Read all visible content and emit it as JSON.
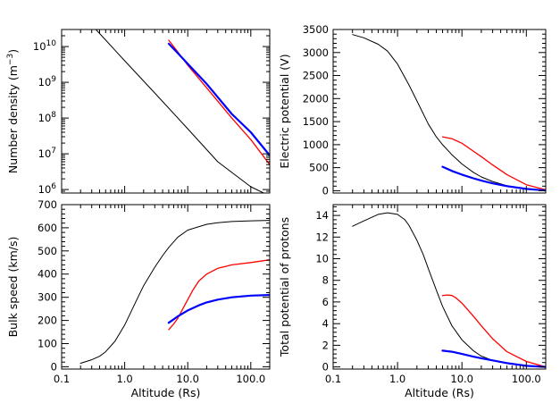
{
  "figure": {
    "background": "#ffffff",
    "axis_color": "#000000",
    "series_colors": {
      "black": "#000000",
      "red": "#ff0000",
      "blue": "#0000ff"
    }
  },
  "chart_data": [
    {
      "id": "number-density",
      "type": "line",
      "xscale": "log",
      "yscale": "log",
      "xlim": [
        0.1,
        200
      ],
      "ylim": [
        800000,
        30000000000
      ],
      "xlabel": "",
      "ylabel": "Number density  (m",
      "ylabel_sup": "−3",
      "ylabel_tail": ")",
      "x_ticks": [],
      "y_ticks": [
        {
          "value": 1000000,
          "base": "10",
          "exp": "6"
        },
        {
          "value": 10000000,
          "base": "10",
          "exp": "7"
        },
        {
          "value": 100000000,
          "base": "10",
          "exp": "8"
        },
        {
          "value": 1000000000,
          "base": "10",
          "exp": "9"
        },
        {
          "value": 10000000000,
          "base": "10",
          "exp": "10"
        }
      ],
      "series": [
        {
          "color": "#000000",
          "width": 1,
          "x": [
            0.35,
            1,
            3,
            10,
            30,
            100,
            160
          ],
          "y": [
            30000000000,
            4000000000,
            500000000,
            50000000,
            6000000,
            1200000,
            800000
          ]
        },
        {
          "color": "#ff0000",
          "width": 1.3,
          "x": [
            5,
            7,
            10,
            20,
            50,
            100,
            200
          ],
          "y": [
            15000000000,
            7000000000,
            3000000000,
            700000000,
            100000000,
            25000000,
            5000000
          ]
        },
        {
          "color": "#0000ff",
          "width": 2.2,
          "x": [
            5,
            7,
            10,
            20,
            50,
            100,
            200
          ],
          "y": [
            12000000000,
            6500000000,
            3300000000,
            900000000,
            130000000,
            40000000,
            9000000
          ]
        }
      ]
    },
    {
      "id": "electric-potential",
      "type": "line",
      "xscale": "log",
      "yscale": "linear",
      "xlim": [
        0.1,
        200
      ],
      "ylim": [
        -50,
        3500
      ],
      "xlabel": "",
      "ylabel": "Electric potential  (V)",
      "x_ticks": [],
      "y_ticks": [
        {
          "value": 0,
          "label": "0"
        },
        {
          "value": 500,
          "label": "500"
        },
        {
          "value": 1000,
          "label": "1000"
        },
        {
          "value": 1500,
          "label": "1500"
        },
        {
          "value": 2000,
          "label": "2000"
        },
        {
          "value": 2500,
          "label": "2500"
        },
        {
          "value": 3000,
          "label": "3000"
        },
        {
          "value": 3500,
          "label": "3500"
        }
      ],
      "series": [
        {
          "color": "#000000",
          "width": 1,
          "x": [
            0.2,
            0.3,
            0.5,
            0.7,
            1,
            1.5,
            2,
            3,
            4,
            5,
            7,
            10,
            15,
            20,
            30,
            50,
            100,
            200
          ],
          "y": [
            3390,
            3320,
            3180,
            3030,
            2750,
            2300,
            1950,
            1450,
            1170,
            1000,
            780,
            580,
            400,
            300,
            200,
            110,
            40,
            5
          ]
        },
        {
          "color": "#ff0000",
          "width": 1.3,
          "x": [
            5,
            7,
            10,
            15,
            20,
            30,
            50,
            100,
            200
          ],
          "y": [
            1170,
            1130,
            1030,
            860,
            740,
            560,
            350,
            130,
            20
          ]
        },
        {
          "color": "#0000ff",
          "width": 2.2,
          "x": [
            5,
            7,
            10,
            15,
            20,
            30,
            50,
            100,
            200
          ],
          "y": [
            520,
            430,
            350,
            270,
            220,
            160,
            100,
            40,
            5
          ]
        }
      ]
    },
    {
      "id": "bulk-speed",
      "type": "line",
      "xscale": "log",
      "yscale": "linear",
      "xlim": [
        0.1,
        200
      ],
      "ylim": [
        -10,
        700
      ],
      "xlabel": "Altitude (Rs)",
      "ylabel": "Bulk speed  (km/s)",
      "x_ticks": [
        {
          "value": 0.1,
          "label": "0.1"
        },
        {
          "value": 1,
          "label": "1.0"
        },
        {
          "value": 10,
          "label": "10.0"
        },
        {
          "value": 100,
          "label": "100.0"
        }
      ],
      "y_ticks": [
        {
          "value": 0,
          "label": "0"
        },
        {
          "value": 100,
          "label": "100"
        },
        {
          "value": 200,
          "label": "200"
        },
        {
          "value": 300,
          "label": "300"
        },
        {
          "value": 400,
          "label": "400"
        },
        {
          "value": 500,
          "label": "500"
        },
        {
          "value": 600,
          "label": "600"
        },
        {
          "value": 700,
          "label": "700"
        }
      ],
      "series": [
        {
          "color": "#000000",
          "width": 1,
          "x": [
            0.2,
            0.3,
            0.4,
            0.5,
            0.7,
            1,
            1.5,
            2,
            3,
            4,
            5,
            7,
            10,
            20,
            30,
            50,
            100,
            200
          ],
          "y": [
            15,
            30,
            45,
            65,
            110,
            180,
            280,
            350,
            430,
            480,
            515,
            560,
            590,
            615,
            622,
            627,
            630,
            632
          ]
        },
        {
          "color": "#ff0000",
          "width": 1.3,
          "x": [
            5,
            6,
            7,
            8,
            10,
            12,
            15,
            20,
            30,
            50,
            100,
            200
          ],
          "y": [
            160,
            185,
            210,
            240,
            290,
            330,
            370,
            400,
            425,
            440,
            450,
            462
          ]
        },
        {
          "color": "#0000ff",
          "width": 2.2,
          "x": [
            5,
            6,
            7,
            10,
            15,
            20,
            30,
            50,
            100,
            200
          ],
          "y": [
            190,
            205,
            218,
            243,
            265,
            278,
            290,
            300,
            307,
            310
          ]
        }
      ]
    },
    {
      "id": "total-potential-protons",
      "type": "line",
      "xscale": "log",
      "yscale": "linear",
      "xlim": [
        0.1,
        200
      ],
      "ylim": [
        -0.2,
        15
      ],
      "xlabel": "Altitude (Rs)",
      "ylabel": "Total potential of protons",
      "x_ticks": [
        {
          "value": 0.1,
          "label": "0.1"
        },
        {
          "value": 1,
          "label": "1.0"
        },
        {
          "value": 10,
          "label": "10.0"
        },
        {
          "value": 100,
          "label": "100.0"
        }
      ],
      "y_ticks": [
        {
          "value": 0,
          "label": "0"
        },
        {
          "value": 2,
          "label": "2"
        },
        {
          "value": 4,
          "label": "4"
        },
        {
          "value": 6,
          "label": "6"
        },
        {
          "value": 8,
          "label": "8"
        },
        {
          "value": 10,
          "label": "10"
        },
        {
          "value": 12,
          "label": "12"
        },
        {
          "value": 14,
          "label": "14"
        }
      ],
      "series": [
        {
          "color": "#000000",
          "width": 1,
          "x": [
            0.2,
            0.3,
            0.5,
            0.7,
            1,
            1.3,
            1.5,
            2,
            2.5,
            3,
            4,
            5,
            7,
            10,
            15,
            20,
            30,
            50,
            100,
            200
          ],
          "y": [
            13,
            13.5,
            14.1,
            14.25,
            14.1,
            13.6,
            13.1,
            11.7,
            10.4,
            9.1,
            7.1,
            5.6,
            3.8,
            2.5,
            1.5,
            1,
            0.6,
            0.3,
            0.1,
            0
          ]
        },
        {
          "color": "#ff0000",
          "width": 1.3,
          "x": [
            5,
            6,
            7,
            8,
            10,
            15,
            20,
            30,
            50,
            100,
            200
          ],
          "y": [
            6.6,
            6.65,
            6.6,
            6.4,
            5.9,
            4.7,
            3.8,
            2.6,
            1.4,
            0.5,
            0
          ]
        },
        {
          "color": "#0000ff",
          "width": 2.2,
          "x": [
            5,
            7,
            10,
            15,
            20,
            30,
            50,
            100,
            200
          ],
          "y": [
            1.5,
            1.4,
            1.2,
            0.95,
            0.8,
            0.6,
            0.35,
            0.1,
            0
          ]
        }
      ]
    }
  ]
}
